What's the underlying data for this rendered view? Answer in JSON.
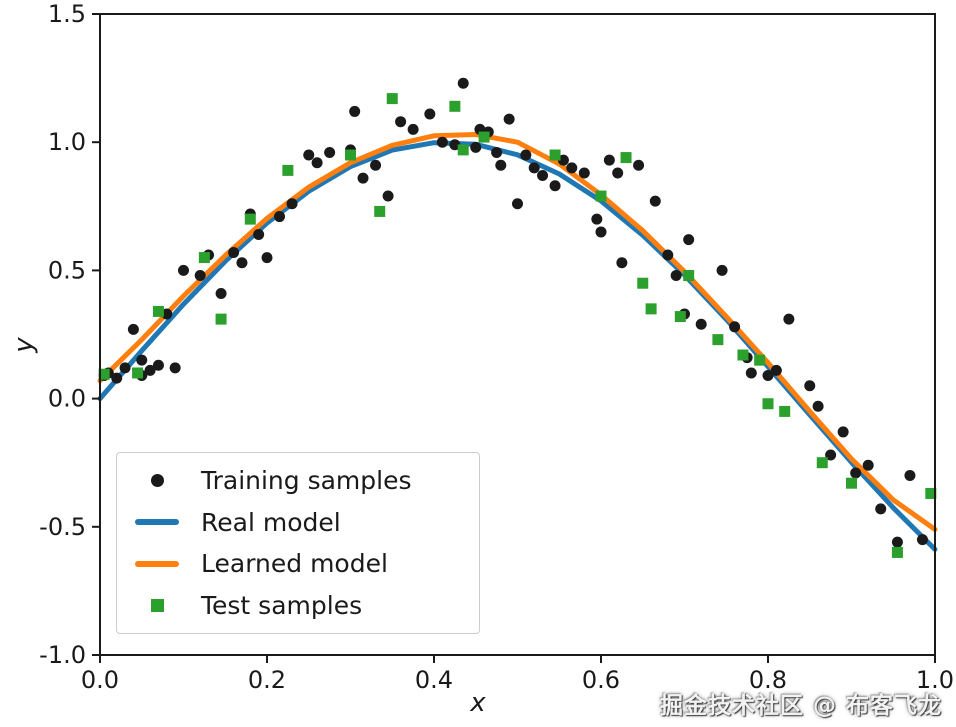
{
  "figure": {
    "xlabel": "x",
    "ylabel": "y",
    "watermark": "掘金技术社区 @ 布客飞龙",
    "background": "#ffffff",
    "text_color": "#1a1a1a"
  },
  "legend": {
    "position": "lower left",
    "items": [
      {
        "label": "Training samples",
        "marker": "dot",
        "color": "#1a1a1a"
      },
      {
        "label": "Real model",
        "marker": "line",
        "color": "#1f77b4"
      },
      {
        "label": "Learned model",
        "marker": "line",
        "color": "#ff7f0e"
      },
      {
        "label": "Test samples",
        "marker": "square",
        "color": "#2ca02c"
      }
    ]
  },
  "chart_data": {
    "type": "scatter",
    "title": "",
    "xlabel": "x",
    "ylabel": "y",
    "xlim": [
      0.0,
      1.0
    ],
    "ylim": [
      -1.0,
      1.5
    ],
    "xticks": [
      0.0,
      0.2,
      0.4,
      0.6,
      0.8,
      1.0
    ],
    "yticks": [
      -1.0,
      -0.5,
      0.0,
      0.5,
      1.0,
      1.5
    ],
    "grid": false,
    "legend_position": "lower left",
    "series": [
      {
        "name": "Training samples",
        "type": "scatter",
        "marker": "circle",
        "color": "#1a1a1a",
        "points": [
          [
            0.005,
            0.09
          ],
          [
            0.01,
            0.1
          ],
          [
            0.02,
            0.08
          ],
          [
            0.03,
            0.12
          ],
          [
            0.04,
            0.27
          ],
          [
            0.05,
            0.09
          ],
          [
            0.05,
            0.15
          ],
          [
            0.06,
            0.11
          ],
          [
            0.07,
            0.13
          ],
          [
            0.08,
            0.33
          ],
          [
            0.09,
            0.12
          ],
          [
            0.1,
            0.5
          ],
          [
            0.12,
            0.48
          ],
          [
            0.13,
            0.56
          ],
          [
            0.145,
            0.41
          ],
          [
            0.16,
            0.57
          ],
          [
            0.17,
            0.53
          ],
          [
            0.18,
            0.72
          ],
          [
            0.19,
            0.64
          ],
          [
            0.2,
            0.55
          ],
          [
            0.215,
            0.71
          ],
          [
            0.23,
            0.76
          ],
          [
            0.25,
            0.95
          ],
          [
            0.26,
            0.92
          ],
          [
            0.275,
            0.96
          ],
          [
            0.3,
            0.97
          ],
          [
            0.305,
            1.12
          ],
          [
            0.315,
            0.86
          ],
          [
            0.33,
            0.91
          ],
          [
            0.345,
            0.79
          ],
          [
            0.36,
            1.08
          ],
          [
            0.375,
            1.05
          ],
          [
            0.395,
            1.11
          ],
          [
            0.41,
            1.0
          ],
          [
            0.425,
            0.99
          ],
          [
            0.435,
            1.23
          ],
          [
            0.45,
            0.98
          ],
          [
            0.455,
            1.05
          ],
          [
            0.465,
            1.04
          ],
          [
            0.475,
            0.96
          ],
          [
            0.48,
            0.91
          ],
          [
            0.49,
            1.09
          ],
          [
            0.5,
            0.76
          ],
          [
            0.51,
            0.95
          ],
          [
            0.52,
            0.9
          ],
          [
            0.53,
            0.87
          ],
          [
            0.545,
            0.83
          ],
          [
            0.555,
            0.93
          ],
          [
            0.565,
            0.9
          ],
          [
            0.58,
            0.88
          ],
          [
            0.595,
            0.7
          ],
          [
            0.6,
            0.65
          ],
          [
            0.61,
            0.93
          ],
          [
            0.62,
            0.88
          ],
          [
            0.625,
            0.53
          ],
          [
            0.645,
            0.91
          ],
          [
            0.665,
            0.77
          ],
          [
            0.68,
            0.56
          ],
          [
            0.69,
            0.48
          ],
          [
            0.7,
            0.33
          ],
          [
            0.705,
            0.62
          ],
          [
            0.72,
            0.29
          ],
          [
            0.745,
            0.5
          ],
          [
            0.76,
            0.28
          ],
          [
            0.775,
            0.16
          ],
          [
            0.78,
            0.1
          ],
          [
            0.8,
            0.09
          ],
          [
            0.81,
            0.11
          ],
          [
            0.825,
            0.31
          ],
          [
            0.85,
            0.05
          ],
          [
            0.86,
            -0.03
          ],
          [
            0.875,
            -0.22
          ],
          [
            0.89,
            -0.13
          ],
          [
            0.905,
            -0.29
          ],
          [
            0.92,
            -0.26
          ],
          [
            0.935,
            -0.43
          ],
          [
            0.955,
            -0.56
          ],
          [
            0.97,
            -0.3
          ],
          [
            0.985,
            -0.55
          ]
        ]
      },
      {
        "name": "Real model",
        "type": "line",
        "color": "#1f77b4",
        "width": 5,
        "points": [
          [
            0.0,
            0.0
          ],
          [
            0.05,
            0.187
          ],
          [
            0.1,
            0.368
          ],
          [
            0.15,
            0.536
          ],
          [
            0.2,
            0.685
          ],
          [
            0.25,
            0.809
          ],
          [
            0.3,
            0.905
          ],
          [
            0.35,
            0.969
          ],
          [
            0.4,
            0.998
          ],
          [
            0.45,
            0.992
          ],
          [
            0.5,
            0.951
          ],
          [
            0.55,
            0.876
          ],
          [
            0.6,
            0.771
          ],
          [
            0.65,
            0.637
          ],
          [
            0.7,
            0.482
          ],
          [
            0.75,
            0.309
          ],
          [
            0.8,
            0.125
          ],
          [
            0.85,
            -0.063
          ],
          [
            0.9,
            -0.249
          ],
          [
            0.95,
            -0.426
          ],
          [
            1.0,
            -0.588
          ]
        ]
      },
      {
        "name": "Learned model",
        "type": "line",
        "color": "#ff7f0e",
        "width": 5,
        "points": [
          [
            0.0,
            0.07
          ],
          [
            0.05,
            0.23
          ],
          [
            0.1,
            0.4
          ],
          [
            0.15,
            0.558
          ],
          [
            0.2,
            0.703
          ],
          [
            0.25,
            0.825
          ],
          [
            0.3,
            0.92
          ],
          [
            0.35,
            0.988
          ],
          [
            0.4,
            1.025
          ],
          [
            0.45,
            1.03
          ],
          [
            0.5,
            1.0
          ],
          [
            0.55,
            0.915
          ],
          [
            0.6,
            0.795
          ],
          [
            0.65,
            0.655
          ],
          [
            0.7,
            0.495
          ],
          [
            0.75,
            0.32
          ],
          [
            0.8,
            0.14
          ],
          [
            0.85,
            -0.05
          ],
          [
            0.9,
            -0.235
          ],
          [
            0.95,
            -0.395
          ],
          [
            1.0,
            -0.51
          ]
        ]
      },
      {
        "name": "Test samples",
        "type": "scatter",
        "marker": "square",
        "color": "#2ca02c",
        "points": [
          [
            0.005,
            0.095
          ],
          [
            0.045,
            0.1
          ],
          [
            0.07,
            0.34
          ],
          [
            0.125,
            0.55
          ],
          [
            0.145,
            0.31
          ],
          [
            0.18,
            0.7
          ],
          [
            0.225,
            0.89
          ],
          [
            0.3,
            0.95
          ],
          [
            0.335,
            0.73
          ],
          [
            0.35,
            1.17
          ],
          [
            0.425,
            1.14
          ],
          [
            0.435,
            0.97
          ],
          [
            0.46,
            1.02
          ],
          [
            0.545,
            0.95
          ],
          [
            0.6,
            0.79
          ],
          [
            0.63,
            0.94
          ],
          [
            0.65,
            0.45
          ],
          [
            0.66,
            0.35
          ],
          [
            0.695,
            0.32
          ],
          [
            0.705,
            0.48
          ],
          [
            0.74,
            0.23
          ],
          [
            0.77,
            0.17
          ],
          [
            0.79,
            0.15
          ],
          [
            0.8,
            -0.02
          ],
          [
            0.82,
            -0.05
          ],
          [
            0.865,
            -0.25
          ],
          [
            0.9,
            -0.33
          ],
          [
            0.955,
            -0.6
          ],
          [
            0.995,
            -0.37
          ]
        ]
      }
    ]
  }
}
